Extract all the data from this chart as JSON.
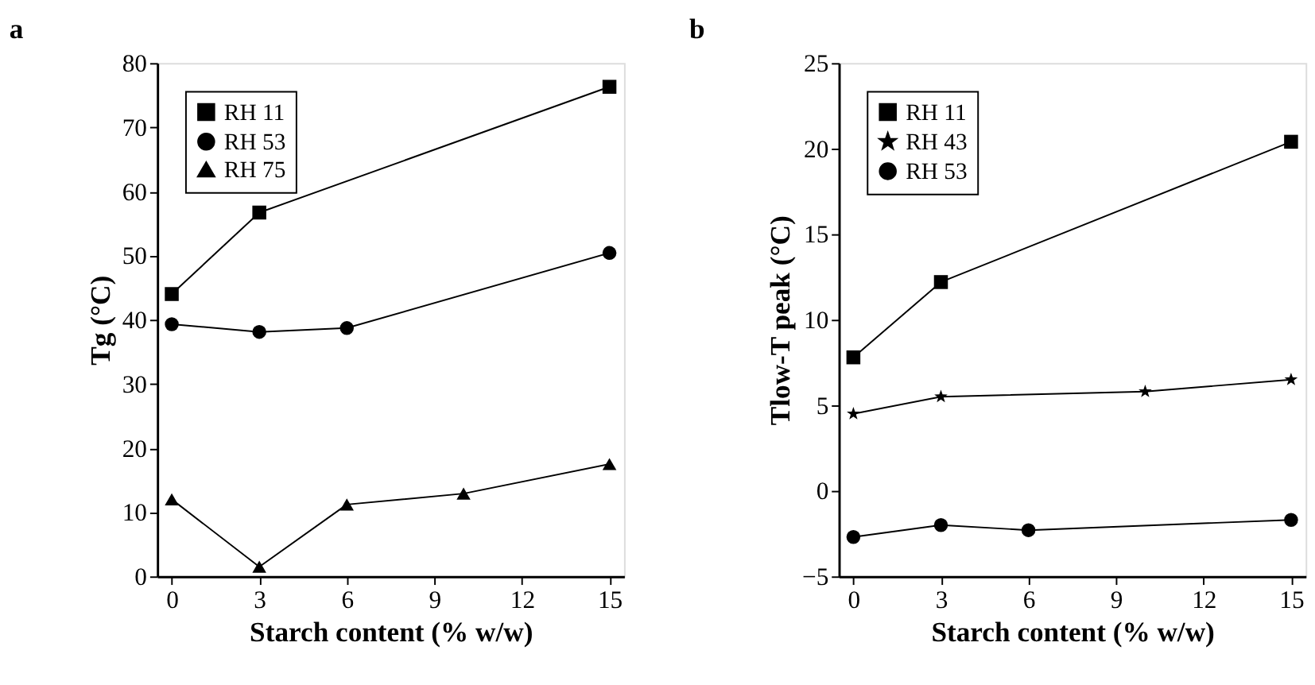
{
  "chart_data": [
    {
      "type": "line",
      "title": "a",
      "xlabel": "Starch content (% w/w)",
      "ylabel": "Tg (°C)",
      "xlim": [
        -0.5,
        15.5
      ],
      "xticks": [
        0,
        3,
        6,
        9,
        12,
        15
      ],
      "ylim": [
        0,
        80
      ],
      "yticks": [
        0,
        10,
        20,
        30,
        40,
        50,
        60,
        70,
        80
      ],
      "grid": false,
      "legend": "top left",
      "line_style": "solid",
      "series": [
        {
          "name": "RH 11",
          "color": "#000000",
          "marker": "square",
          "x": [
            0,
            3,
            15
          ],
          "values": [
            44,
            56.7,
            76.3
          ]
        },
        {
          "name": "RH 53",
          "color": "#000000",
          "marker": "circle",
          "x": [
            0,
            3,
            6,
            15
          ],
          "values": [
            39.3,
            38.1,
            38.7,
            50.4
          ]
        },
        {
          "name": "RH 75",
          "color": "#000000",
          "marker": "triangle",
          "x": [
            0,
            3,
            6,
            10,
            15
          ],
          "values": [
            12,
            1.5,
            11.2,
            12.9,
            17.5
          ]
        }
      ]
    },
    {
      "type": "line",
      "title": "b",
      "xlabel": "Starch content (% w/w)",
      "ylabel": "Tlow-T peak (°C)",
      "xlim": [
        -0.5,
        15.5
      ],
      "xticks": [
        0,
        3,
        6,
        9,
        12,
        15
      ],
      "ylim": [
        -5,
        25
      ],
      "yticks": [
        -5,
        0,
        5,
        10,
        15,
        20,
        25
      ],
      "grid": false,
      "legend": "top left",
      "line_style": "solid",
      "series": [
        {
          "name": "RH 11",
          "color": "#000000",
          "marker": "square",
          "x": [
            0,
            3,
            15
          ],
          "values": [
            7.8,
            12.2,
            20.4
          ]
        },
        {
          "name": "RH 43",
          "color": "#000000",
          "marker": "star",
          "x": [
            0,
            3,
            10,
            15
          ],
          "values": [
            4.5,
            5.5,
            5.8,
            6.5
          ]
        },
        {
          "name": "RH 53",
          "color": "#000000",
          "marker": "circle",
          "x": [
            0,
            3,
            6,
            15
          ],
          "values": [
            -2.7,
            -2.0,
            -2.3,
            -1.7
          ]
        }
      ]
    }
  ]
}
